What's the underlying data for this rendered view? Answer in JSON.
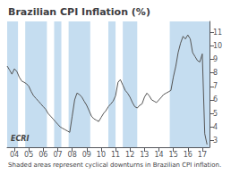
{
  "chart_data": {
    "type": "line",
    "title": "Brazilian CPI Inflation (%)",
    "subtitle": "Shaded areas represent cyclical downturns in Brazilian CPI inflation.",
    "annotations": [
      "ECRI"
    ],
    "x": [
      2003.5,
      2003.67,
      2003.83,
      2004.0,
      2004.17,
      2004.33,
      2004.5,
      2004.67,
      2004.83,
      2005.0,
      2005.17,
      2005.33,
      2005.5,
      2005.67,
      2005.83,
      2006.0,
      2006.17,
      2006.33,
      2006.5,
      2006.67,
      2006.83,
      2007.0,
      2007.17,
      2007.33,
      2007.5,
      2007.67,
      2007.83,
      2008.0,
      2008.17,
      2008.33,
      2008.5,
      2008.67,
      2008.83,
      2009.0,
      2009.17,
      2009.33,
      2009.5,
      2009.67,
      2009.83,
      2010.0,
      2010.17,
      2010.33,
      2010.5,
      2010.67,
      2010.83,
      2011.0,
      2011.17,
      2011.33,
      2011.5,
      2011.67,
      2011.83,
      2012.0,
      2012.17,
      2012.33,
      2012.5,
      2012.67,
      2012.83,
      2013.0,
      2013.17,
      2013.33,
      2013.5,
      2013.67,
      2013.83,
      2014.0,
      2014.17,
      2014.33,
      2014.5,
      2014.67,
      2014.83,
      2015.0,
      2015.17,
      2015.33,
      2015.5,
      2015.67,
      2015.83,
      2016.0,
      2016.17,
      2016.33,
      2016.5,
      2016.67,
      2016.83,
      2017.0,
      2017.17,
      2017.33
    ],
    "values": [
      8.5,
      8.2,
      7.9,
      8.3,
      8.1,
      7.7,
      7.4,
      7.3,
      7.2,
      7.0,
      6.6,
      6.3,
      6.1,
      5.9,
      5.7,
      5.5,
      5.3,
      5.0,
      4.8,
      4.6,
      4.4,
      4.2,
      4.0,
      3.9,
      3.8,
      3.7,
      3.6,
      4.8,
      6.0,
      6.5,
      6.4,
      6.2,
      5.9,
      5.6,
      5.2,
      4.8,
      4.6,
      4.5,
      4.4,
      4.7,
      5.0,
      5.2,
      5.5,
      5.7,
      5.9,
      6.3,
      7.3,
      7.5,
      7.1,
      6.7,
      6.5,
      6.2,
      5.8,
      5.5,
      5.4,
      5.6,
      5.7,
      6.2,
      6.5,
      6.3,
      6.0,
      5.9,
      5.8,
      6.0,
      6.2,
      6.4,
      6.5,
      6.6,
      6.7,
      7.7,
      8.5,
      9.5,
      10.2,
      10.7,
      10.5,
      10.8,
      10.5,
      9.5,
      9.2,
      8.9,
      8.8,
      9.4,
      3.5,
      2.7
    ],
    "color": "#555555",
    "shaded_regions": [
      [
        2003.5,
        2004.25
      ],
      [
        2004.75,
        2006.25
      ],
      [
        2006.75,
        2007.25
      ],
      [
        2007.75,
        2009.25
      ],
      [
        2010.5,
        2011.0
      ],
      [
        2011.5,
        2012.5
      ],
      [
        2014.75,
        2017.5
      ]
    ],
    "shade_color": "#c5ddf0",
    "xlim": [
      2003.5,
      2017.5
    ],
    "xticks": [
      {
        "value": 2004,
        "label": "04"
      },
      {
        "value": 2005,
        "label": "05"
      },
      {
        "value": 2006,
        "label": "06"
      },
      {
        "value": 2007,
        "label": "07"
      },
      {
        "value": 2008,
        "label": "08"
      },
      {
        "value": 2009,
        "label": "09"
      },
      {
        "value": 2010,
        "label": "10"
      },
      {
        "value": 2011,
        "label": "11"
      },
      {
        "value": 2012,
        "label": "12"
      },
      {
        "value": 2013,
        "label": "13"
      },
      {
        "value": 2014,
        "label": "14"
      },
      {
        "value": 2015,
        "label": "15"
      },
      {
        "value": 2016,
        "label": "16"
      },
      {
        "value": 2017,
        "label": "17"
      }
    ],
    "ylim": [
      2.5,
      11.8
    ],
    "yticks": [
      3,
      4,
      5,
      6,
      7,
      8,
      9,
      10,
      11
    ],
    "grid": false
  }
}
